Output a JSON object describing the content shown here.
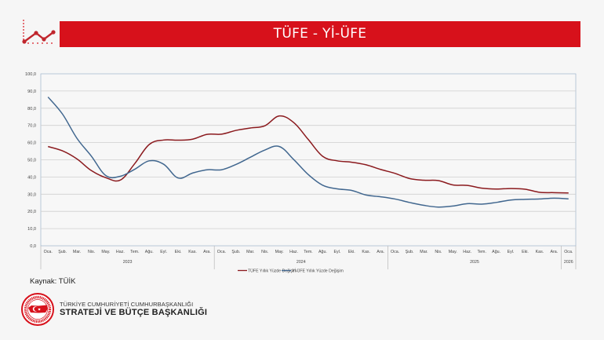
{
  "header": {
    "title": "TÜFE - Yİ-ÜFE",
    "accent_color": "#d7111b",
    "icon": "line-chart-icon"
  },
  "chart_data": {
    "type": "line",
    "title": "TÜFE - Yİ-ÜFE",
    "xlabel": "",
    "ylabel": "",
    "ylim": [
      0,
      100
    ],
    "yticks": [
      "0,0",
      "10,0",
      "20,0",
      "30,0",
      "40,0",
      "50,0",
      "60,0",
      "70,0",
      "80,0",
      "90,0",
      "100,0"
    ],
    "grid": true,
    "legend_position": "bottom",
    "categories": [
      "Oca.",
      "Şub.",
      "Mar.",
      "Nis.",
      "May.",
      "Haz.",
      "Tem.",
      "Ağu.",
      "Eyl.",
      "Eki.",
      "Kas.",
      "Ara.",
      "Oca.",
      "Şub.",
      "Mar.",
      "Nis.",
      "May.",
      "Haz.",
      "Tem.",
      "Ağu.",
      "Eyl.",
      "Eki.",
      "Kas.",
      "Ara.",
      "Oca.",
      "Şub.",
      "Mar.",
      "Nis.",
      "May.",
      "Haz.",
      "Tem.",
      "Ağu.",
      "Eyl.",
      "Eki.",
      "Kas.",
      "Ara.",
      "Oca."
    ],
    "year_groups": [
      {
        "label": "2023",
        "months": 12
      },
      {
        "label": "2024",
        "months": 12
      },
      {
        "label": "2025",
        "months": 12
      },
      {
        "label": "2026",
        "months": 1
      }
    ],
    "series": [
      {
        "name": "TÜFE Yıllık Yüzde Değişim",
        "color": "#8b1a1e",
        "values": [
          57.7,
          55.2,
          50.5,
          43.7,
          39.6,
          38.2,
          47.8,
          58.9,
          61.5,
          61.4,
          62.0,
          64.8,
          64.9,
          67.1,
          68.5,
          69.8,
          75.5,
          71.6,
          61.8,
          52.0,
          49.4,
          48.6,
          47.1,
          44.4,
          42.1,
          39.1,
          38.1,
          37.9,
          35.4,
          35.1,
          33.5,
          33.0,
          33.3,
          32.9,
          31.1,
          30.9,
          30.7
        ]
      },
      {
        "name": "Yİ-ÜFE Yıllık Yüzde Değişim",
        "color": "#41678f",
        "values": [
          86.5,
          76.6,
          62.5,
          52.1,
          40.8,
          40.4,
          44.5,
          49.4,
          47.4,
          39.4,
          42.3,
          44.2,
          44.2,
          47.3,
          51.5,
          55.7,
          57.7,
          50.1,
          41.4,
          35.2,
          33.1,
          32.2,
          29.5,
          28.5,
          27.2,
          25.2,
          23.5,
          22.5,
          23.1,
          24.5,
          24.2,
          25.2,
          26.6,
          27.0,
          27.2,
          27.7,
          27.3
        ]
      }
    ]
  },
  "footer": {
    "source": "Kaynak: TÜİK",
    "org_line1": "TÜRKİYE CUMHURİYETİ CUMHURBAŞKANLIĞI",
    "org_line2": "STRATEJİ VE BÜTÇE BAŞKANLIĞI",
    "logo": "strategy-budget-presidency-seal"
  }
}
